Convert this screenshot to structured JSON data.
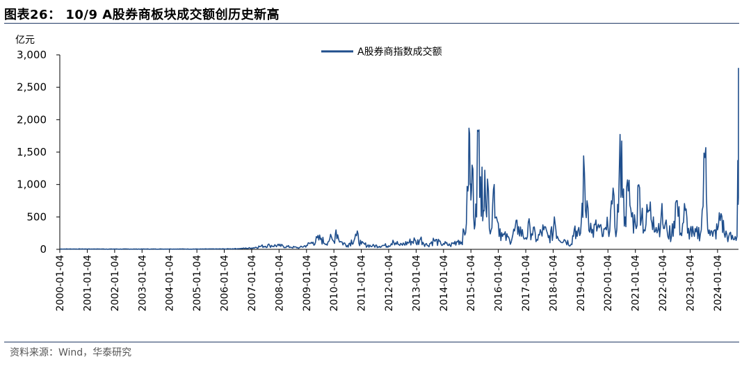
{
  "header": {
    "title": "图表26： 10/9 A股券商板块成交额创历史新高"
  },
  "footer": {
    "source": "资料来源：Wind，华泰研究"
  },
  "chart_data": {
    "type": "line",
    "unit_label": "亿元",
    "ylim": [
      0,
      3000
    ],
    "y_ticks": [
      0,
      500,
      1000,
      1500,
      2000,
      2500,
      3000
    ],
    "y_tick_labels": [
      "0",
      "500",
      "1,000",
      "1,500",
      "2,000",
      "2,500",
      "3,000"
    ],
    "x_range": [
      "2000-01-04",
      "2024-10-09"
    ],
    "x_tick_labels": [
      "2000-01-04",
      "2001-01-04",
      "2002-01-04",
      "2003-01-04",
      "2004-01-04",
      "2005-01-04",
      "2006-01-04",
      "2007-01-04",
      "2008-01-04",
      "2009-01-04",
      "2010-01-04",
      "2011-01-04",
      "2012-01-04",
      "2013-01-04",
      "2014-01-04",
      "2015-01-04",
      "2016-01-04",
      "2017-01-04",
      "2018-01-04",
      "2019-01-04",
      "2020-01-04",
      "2021-01-04",
      "2022-01-04",
      "2023-01-04",
      "2024-01-04"
    ],
    "legend_position": "top-center",
    "grid": false,
    "color": "#1f4e8c",
    "series": [
      {
        "name": "A股券商指数成交额",
        "points": [
          [
            "2000-01-04",
            5
          ],
          [
            "2001-01-04",
            5
          ],
          [
            "2002-01-04",
            4
          ],
          [
            "2003-01-04",
            4
          ],
          [
            "2004-01-04",
            5
          ],
          [
            "2005-01-04",
            4
          ],
          [
            "2006-01-04",
            6
          ],
          [
            "2006-07-01",
            10
          ],
          [
            "2007-01-04",
            20
          ],
          [
            "2007-05-01",
            45
          ],
          [
            "2007-09-01",
            60
          ],
          [
            "2008-01-04",
            55
          ],
          [
            "2008-06-01",
            35
          ],
          [
            "2008-10-01",
            25
          ],
          [
            "2009-01-04",
            60
          ],
          [
            "2009-04-01",
            110
          ],
          [
            "2009-07-20",
            170
          ],
          [
            "2009-09-01",
            90
          ],
          [
            "2009-11-10",
            160
          ],
          [
            "2010-01-04",
            120
          ],
          [
            "2010-02-01",
            300
          ],
          [
            "2010-04-01",
            120
          ],
          [
            "2010-07-01",
            60
          ],
          [
            "2010-11-01",
            210
          ],
          [
            "2011-01-04",
            80
          ],
          [
            "2011-06-01",
            50
          ],
          [
            "2011-11-01",
            60
          ],
          [
            "2012-01-04",
            55
          ],
          [
            "2012-03-01",
            140
          ],
          [
            "2012-06-01",
            60
          ],
          [
            "2012-12-20",
            140
          ],
          [
            "2013-01-04",
            90
          ],
          [
            "2013-03-01",
            160
          ],
          [
            "2013-06-01",
            60
          ],
          [
            "2013-09-01",
            140
          ],
          [
            "2013-12-01",
            80
          ],
          [
            "2014-01-04",
            90
          ],
          [
            "2014-04-01",
            60
          ],
          [
            "2014-07-20",
            140
          ],
          [
            "2014-09-01",
            110
          ],
          [
            "2014-11-05",
            400
          ],
          [
            "2014-11-25",
            900
          ],
          [
            "2014-12-09",
            1870
          ],
          [
            "2014-12-25",
            1000
          ],
          [
            "2015-01-04",
            760
          ],
          [
            "2015-01-20",
            1300
          ],
          [
            "2015-02-10",
            500
          ],
          [
            "2015-03-10",
            700
          ],
          [
            "2015-04-13",
            1820
          ],
          [
            "2015-05-01",
            800
          ],
          [
            "2015-06-01",
            1270
          ],
          [
            "2015-06-20",
            600
          ],
          [
            "2015-07-08",
            1220
          ],
          [
            "2015-08-01",
            500
          ],
          [
            "2015-08-25",
            900
          ],
          [
            "2015-10-01",
            300
          ],
          [
            "2015-11-10",
            1000
          ],
          [
            "2015-12-10",
            500
          ],
          [
            "2016-01-04",
            400
          ],
          [
            "2016-03-01",
            200
          ],
          [
            "2016-06-01",
            150
          ],
          [
            "2016-10-01",
            350
          ],
          [
            "2016-12-01",
            200
          ],
          [
            "2017-01-04",
            180
          ],
          [
            "2017-03-01",
            350
          ],
          [
            "2017-06-01",
            150
          ],
          [
            "2017-09-01",
            300
          ],
          [
            "2017-11-01",
            180
          ],
          [
            "2018-01-04",
            250
          ],
          [
            "2018-01-20",
            500
          ],
          [
            "2018-03-01",
            200
          ],
          [
            "2018-06-01",
            150
          ],
          [
            "2018-09-01",
            80
          ],
          [
            "2018-10-22",
            360
          ],
          [
            "2018-11-20",
            200
          ],
          [
            "2019-01-04",
            250
          ],
          [
            "2019-02-25",
            1180
          ],
          [
            "2019-03-10",
            600
          ],
          [
            "2019-04-01",
            750
          ],
          [
            "2019-06-01",
            250
          ],
          [
            "2019-08-20",
            350
          ],
          [
            "2019-11-01",
            200
          ],
          [
            "2019-12-15",
            300
          ],
          [
            "2020-01-04",
            350
          ],
          [
            "2020-02-10",
            600
          ],
          [
            "2020-03-01",
            700
          ],
          [
            "2020-05-01",
            300
          ],
          [
            "2020-07-06",
            1670
          ],
          [
            "2020-07-20",
            800
          ],
          [
            "2020-08-20",
            500
          ],
          [
            "2020-10-01",
            900
          ],
          [
            "2020-11-15",
            500
          ],
          [
            "2021-01-04",
            400
          ],
          [
            "2021-03-01",
            950
          ],
          [
            "2021-05-01",
            300
          ],
          [
            "2021-07-01",
            600
          ],
          [
            "2021-09-01",
            500
          ],
          [
            "2021-11-01",
            300
          ],
          [
            "2021-12-15",
            550
          ],
          [
            "2022-01-04",
            400
          ],
          [
            "2022-03-01",
            300
          ],
          [
            "2022-05-01",
            200
          ],
          [
            "2022-07-04",
            750
          ],
          [
            "2022-09-01",
            250
          ],
          [
            "2022-11-01",
            600
          ],
          [
            "2022-12-01",
            250
          ],
          [
            "2023-01-04",
            300
          ],
          [
            "2023-03-01",
            200
          ],
          [
            "2023-06-01",
            300
          ],
          [
            "2023-07-31",
            1570
          ],
          [
            "2023-08-15",
            600
          ],
          [
            "2023-09-15",
            300
          ],
          [
            "2023-11-01",
            200
          ],
          [
            "2024-01-04",
            300
          ],
          [
            "2024-02-20",
            550
          ],
          [
            "2024-04-01",
            250
          ],
          [
            "2024-06-01",
            200
          ],
          [
            "2024-08-01",
            150
          ],
          [
            "2024-09-20",
            200
          ],
          [
            "2024-09-30",
            1370
          ],
          [
            "2024-10-08",
            800
          ],
          [
            "2024-10-09",
            2800
          ]
        ]
      }
    ]
  }
}
